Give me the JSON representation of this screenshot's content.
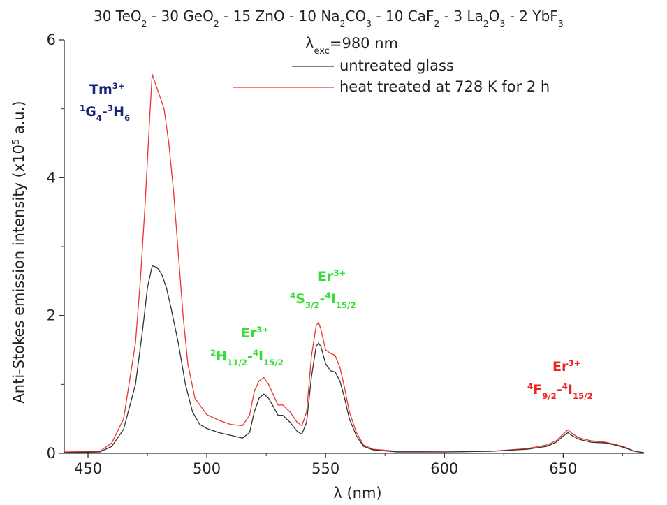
{
  "chart_data": {
    "type": "line",
    "title_parts": [
      {
        "t": "30 TeO"
      },
      {
        "t": "2",
        "s": "sub"
      },
      {
        "t": " - 30 GeO"
      },
      {
        "t": "2",
        "s": "sub"
      },
      {
        "t": " - 15 ZnO - 10 Na"
      },
      {
        "t": "2",
        "s": "sub"
      },
      {
        "t": "CO"
      },
      {
        "t": "3",
        "s": "sub"
      },
      {
        "t": " - 10 CaF"
      },
      {
        "t": "2",
        "s": "sub"
      },
      {
        "t": " - 3 La"
      },
      {
        "t": "2",
        "s": "sub"
      },
      {
        "t": "O"
      },
      {
        "t": "3",
        "s": "sub"
      },
      {
        "t": " - 2 YbF"
      },
      {
        "t": "3",
        "s": "sub"
      }
    ],
    "excitation_parts": [
      {
        "t": "λ"
      },
      {
        "t": "exc",
        "s": "sub"
      },
      {
        "t": "=980 nm"
      }
    ],
    "xlabel": "λ (nm)",
    "ylabel_parts": [
      {
        "t": "Anti-Stokes emission intensity (x10"
      },
      {
        "t": "5",
        "s": "sup"
      },
      {
        "t": " a.u.)"
      }
    ],
    "xlim": [
      440,
      684
    ],
    "ylim": [
      0,
      6
    ],
    "xticks": [
      450,
      500,
      550,
      600,
      650
    ],
    "yticks": [
      0,
      2,
      4,
      6
    ],
    "grid": false,
    "legend_position": "top-right",
    "series": [
      {
        "name": "untreated glass",
        "color": "#333333",
        "points": [
          [
            440,
            0.01
          ],
          [
            455,
            0.02
          ],
          [
            460,
            0.1
          ],
          [
            465,
            0.35
          ],
          [
            470,
            1.0
          ],
          [
            473,
            1.8
          ],
          [
            475,
            2.4
          ],
          [
            477,
            2.72
          ],
          [
            479,
            2.7
          ],
          [
            481,
            2.6
          ],
          [
            483,
            2.4
          ],
          [
            485,
            2.1
          ],
          [
            488,
            1.6
          ],
          [
            491,
            1.0
          ],
          [
            494,
            0.6
          ],
          [
            497,
            0.42
          ],
          [
            500,
            0.36
          ],
          [
            505,
            0.3
          ],
          [
            510,
            0.26
          ],
          [
            515,
            0.22
          ],
          [
            518,
            0.3
          ],
          [
            520,
            0.6
          ],
          [
            522,
            0.8
          ],
          [
            524,
            0.86
          ],
          [
            526,
            0.8
          ],
          [
            528,
            0.68
          ],
          [
            530,
            0.55
          ],
          [
            532,
            0.55
          ],
          [
            535,
            0.45
          ],
          [
            538,
            0.32
          ],
          [
            540,
            0.28
          ],
          [
            542,
            0.45
          ],
          [
            544,
            1.1
          ],
          [
            546,
            1.55
          ],
          [
            547,
            1.6
          ],
          [
            548,
            1.55
          ],
          [
            550,
            1.3
          ],
          [
            552,
            1.2
          ],
          [
            554,
            1.18
          ],
          [
            556,
            1.05
          ],
          [
            558,
            0.8
          ],
          [
            560,
            0.5
          ],
          [
            563,
            0.25
          ],
          [
            566,
            0.1
          ],
          [
            570,
            0.05
          ],
          [
            580,
            0.02
          ],
          [
            600,
            0.02
          ],
          [
            620,
            0.03
          ],
          [
            635,
            0.06
          ],
          [
            643,
            0.1
          ],
          [
            647,
            0.16
          ],
          [
            650,
            0.25
          ],
          [
            652,
            0.3
          ],
          [
            654,
            0.25
          ],
          [
            657,
            0.2
          ],
          [
            662,
            0.16
          ],
          [
            668,
            0.15
          ],
          [
            672,
            0.12
          ],
          [
            676,
            0.08
          ],
          [
            680,
            0.03
          ],
          [
            684,
            0.01
          ]
        ]
      },
      {
        "name": "heat treated at 728 K for 2 h",
        "color": "#ee3333",
        "points": [
          [
            440,
            0.02
          ],
          [
            455,
            0.03
          ],
          [
            460,
            0.15
          ],
          [
            465,
            0.5
          ],
          [
            470,
            1.6
          ],
          [
            472,
            2.5
          ],
          [
            474,
            3.6
          ],
          [
            476,
            4.9
          ],
          [
            477,
            5.5
          ],
          [
            478,
            5.4
          ],
          [
            480,
            5.2
          ],
          [
            482,
            5.0
          ],
          [
            484,
            4.5
          ],
          [
            486,
            3.8
          ],
          [
            488,
            2.9
          ],
          [
            490,
            2.0
          ],
          [
            492,
            1.3
          ],
          [
            495,
            0.8
          ],
          [
            500,
            0.56
          ],
          [
            505,
            0.48
          ],
          [
            510,
            0.42
          ],
          [
            515,
            0.4
          ],
          [
            518,
            0.55
          ],
          [
            520,
            0.9
          ],
          [
            522,
            1.05
          ],
          [
            524,
            1.1
          ],
          [
            526,
            1.0
          ],
          [
            528,
            0.85
          ],
          [
            530,
            0.7
          ],
          [
            532,
            0.7
          ],
          [
            535,
            0.6
          ],
          [
            538,
            0.45
          ],
          [
            540,
            0.4
          ],
          [
            542,
            0.6
          ],
          [
            544,
            1.4
          ],
          [
            546,
            1.85
          ],
          [
            547,
            1.9
          ],
          [
            548,
            1.8
          ],
          [
            550,
            1.5
          ],
          [
            552,
            1.45
          ],
          [
            554,
            1.42
          ],
          [
            556,
            1.25
          ],
          [
            558,
            0.95
          ],
          [
            560,
            0.6
          ],
          [
            563,
            0.3
          ],
          [
            566,
            0.12
          ],
          [
            570,
            0.06
          ],
          [
            580,
            0.03
          ],
          [
            600,
            0.02
          ],
          [
            620,
            0.03
          ],
          [
            635,
            0.07
          ],
          [
            643,
            0.12
          ],
          [
            647,
            0.18
          ],
          [
            650,
            0.28
          ],
          [
            652,
            0.34
          ],
          [
            654,
            0.28
          ],
          [
            657,
            0.22
          ],
          [
            662,
            0.18
          ],
          [
            668,
            0.16
          ],
          [
            672,
            0.13
          ],
          [
            676,
            0.09
          ],
          [
            680,
            0.03
          ],
          [
            684,
            0.01
          ]
        ]
      }
    ],
    "annotations": [
      {
        "color": "#1a237e",
        "line1": [
          {
            "t": "Tm"
          },
          {
            "t": "3+",
            "s": "sup"
          }
        ],
        "line2": [
          {
            "t": "1",
            "s": "sup"
          },
          {
            "t": "G"
          },
          {
            "t": "4",
            "s": "sub"
          },
          {
            "t": "-"
          },
          {
            "t": "3",
            "s": "sup"
          },
          {
            "t": "H"
          },
          {
            "t": "6",
            "s": "sub"
          }
        ]
      },
      {
        "color": "#33dd33",
        "line1": [
          {
            "t": "Er"
          },
          {
            "t": "3+",
            "s": "sup"
          }
        ],
        "line2": [
          {
            "t": "2",
            "s": "sup"
          },
          {
            "t": "H"
          },
          {
            "t": "11/2",
            "s": "sub"
          },
          {
            "t": "-"
          },
          {
            "t": "4",
            "s": "sup"
          },
          {
            "t": "I"
          },
          {
            "t": "15/2",
            "s": "sub"
          }
        ]
      },
      {
        "color": "#33dd33",
        "line1": [
          {
            "t": "Er"
          },
          {
            "t": "3+",
            "s": "sup"
          }
        ],
        "line2": [
          {
            "t": "4",
            "s": "sup"
          },
          {
            "t": "S"
          },
          {
            "t": "3/2",
            "s": "sub"
          },
          {
            "t": "-"
          },
          {
            "t": "4",
            "s": "sup"
          },
          {
            "t": "I"
          },
          {
            "t": "15/2",
            "s": "sub"
          }
        ]
      },
      {
        "color": "#ee2222",
        "line1": [
          {
            "t": "Er"
          },
          {
            "t": "3+",
            "s": "sup"
          }
        ],
        "line2": [
          {
            "t": "4",
            "s": "sup"
          },
          {
            "t": "F"
          },
          {
            "t": "9/2",
            "s": "sub"
          },
          {
            "t": "-"
          },
          {
            "t": "4",
            "s": "sup"
          },
          {
            "t": "I"
          },
          {
            "t": "15/2",
            "s": "sub"
          }
        ]
      }
    ]
  }
}
